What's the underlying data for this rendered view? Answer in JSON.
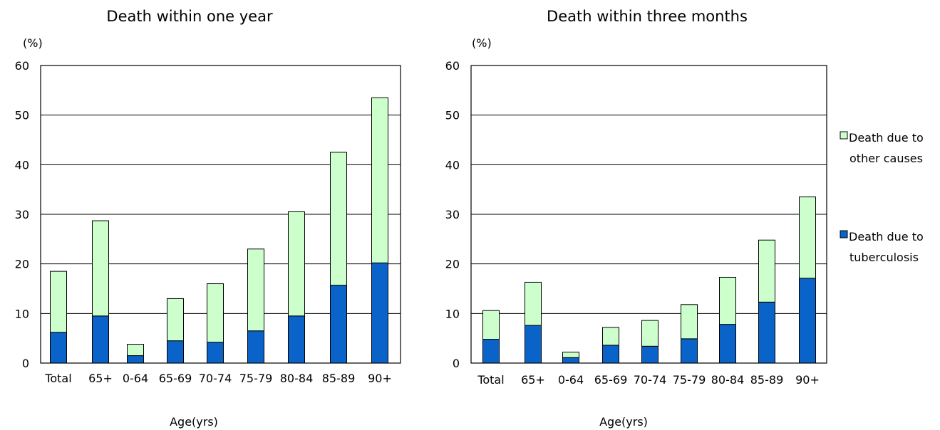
{
  "chart_data": [
    {
      "type": "bar",
      "stacked": true,
      "title": "Death within one year",
      "unit_label": "(%)",
      "xlabel": "Age(yrs)",
      "ylabel": "",
      "ylim": [
        0,
        60
      ],
      "yticks": [
        0,
        10,
        20,
        30,
        40,
        50,
        60
      ],
      "grid": true,
      "categories": [
        "Total",
        "65+",
        "0-64",
        "65-69",
        "70-74",
        "75-79",
        "80-84",
        "85-89",
        "90+"
      ],
      "series": [
        {
          "name": "Death due to tuberculosis",
          "color": "#0a63c9",
          "values": [
            6.2,
            9.5,
            1.5,
            4.5,
            4.2,
            6.5,
            9.5,
            15.7,
            20.2
          ]
        },
        {
          "name": "Death due to other causes",
          "color": "#ccffcc",
          "values": [
            12.3,
            19.2,
            2.3,
            8.5,
            11.8,
            16.5,
            21.0,
            26.8,
            33.3
          ]
        }
      ]
    },
    {
      "type": "bar",
      "stacked": true,
      "title": "Death within three months",
      "unit_label": "(%)",
      "xlabel": "Age(yrs)",
      "ylabel": "",
      "ylim": [
        0,
        60
      ],
      "yticks": [
        0,
        10,
        20,
        30,
        40,
        50,
        60
      ],
      "grid": true,
      "legend_position": "right",
      "categories": [
        "Total",
        "65+",
        "0-64",
        "65-69",
        "70-74",
        "75-79",
        "80-84",
        "85-89",
        "90+"
      ],
      "series": [
        {
          "name": "Death due to tuberculosis",
          "color": "#0a63c9",
          "values": [
            4.8,
            7.6,
            1.1,
            3.6,
            3.4,
            4.9,
            7.8,
            12.3,
            17.1
          ]
        },
        {
          "name": "Death due to other causes",
          "color": "#ccffcc",
          "values": [
            5.8,
            8.7,
            1.1,
            3.6,
            5.2,
            6.9,
            9.5,
            12.5,
            16.4
          ]
        }
      ]
    }
  ],
  "legend": {
    "items": [
      {
        "line1": "Death due to",
        "line2": "other causes",
        "color": "#ccffcc"
      },
      {
        "line1": "Death due to",
        "line2": "tuberculosis",
        "color": "#0a63c9"
      }
    ]
  }
}
